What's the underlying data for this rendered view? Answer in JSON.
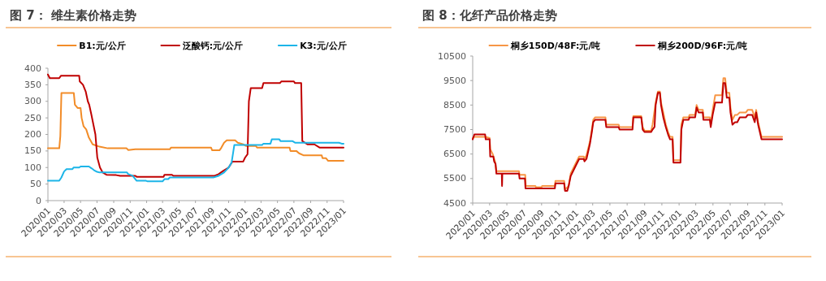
{
  "chart_data": [
    {
      "type": "line",
      "title": "图 7： 维生素价格走势",
      "legend": "top",
      "line_style": "solid",
      "xlim": [
        "2020-01",
        "2023-01"
      ],
      "xticks": [
        {
          "value": "2020-01",
          "label": "2020/01"
        },
        {
          "value": "2020-03",
          "label": "2020/03"
        },
        {
          "value": "2020-05",
          "label": "2020/05"
        },
        {
          "value": "2020-07",
          "label": "2020/07"
        },
        {
          "value": "2020-09",
          "label": "2020/09"
        },
        {
          "value": "2020-11",
          "label": "2020/11"
        },
        {
          "value": "2021-01",
          "label": "2021/01"
        },
        {
          "value": "2021-03",
          "label": "2021/03"
        },
        {
          "value": "2021-05",
          "label": "2021/05"
        },
        {
          "value": "2021-07",
          "label": "2021/07"
        },
        {
          "value": "2021-09",
          "label": "2021/09"
        },
        {
          "value": "2021-11",
          "label": "2021/11"
        },
        {
          "value": "2022-01",
          "label": "2022/01"
        },
        {
          "value": "2022-03",
          "label": "2022/03"
        },
        {
          "value": "2022-05",
          "label": "2022/05"
        },
        {
          "value": "2022-07",
          "label": "2022/07"
        },
        {
          "value": "2022-09",
          "label": "2022/09"
        },
        {
          "value": "2022-11",
          "label": "2022/11"
        },
        {
          "value": "2023-01",
          "label": "2023/01"
        }
      ],
      "ylim": [
        0,
        400
      ],
      "yticks": [
        0,
        50,
        100,
        150,
        200,
        250,
        300,
        350,
        400
      ],
      "series": [
        {
          "name": "B1:元/公斤",
          "color": "#f28c28",
          "x": [
            "2020-01-01",
            "2020-02-12",
            "2020-02-16",
            "2020-02-20",
            "2020-04-06",
            "2020-04-10",
            "2020-04-20",
            "2020-05-01",
            "2020-05-05",
            "2020-05-12",
            "2020-05-22",
            "2020-06-01",
            "2020-06-15",
            "2020-07-10",
            "2020-08-10",
            "2020-10-18",
            "2020-10-25",
            "2020-11-20",
            "2021-03-28",
            "2021-04-01",
            "2021-08-28",
            "2021-09-01",
            "2021-09-28",
            "2021-10-05",
            "2021-10-15",
            "2021-10-25",
            "2021-11-25",
            "2021-12-05",
            "2021-12-25",
            "2022-01-05",
            "2022-02-10",
            "2022-02-15",
            "2022-06-15",
            "2022-06-18",
            "2022-07-10",
            "2022-07-20",
            "2022-08-05",
            "2022-10-12",
            "2022-10-15",
            "2022-10-28",
            "2022-11-05",
            "2023-01-01"
          ],
          "values": [
            158,
            158,
            195,
            325,
            325,
            290,
            280,
            280,
            250,
            225,
            215,
            190,
            170,
            163,
            158,
            158,
            153,
            155,
            155,
            160,
            160,
            152,
            152,
            160,
            175,
            182,
            182,
            175,
            170,
            165,
            165,
            160,
            160,
            150,
            150,
            143,
            137,
            137,
            128,
            128,
            120,
            120
          ]
        },
        {
          "name": "泛酸钙:元/公斤",
          "color": "#c00000",
          "x": [
            "2020-01-01",
            "2020-01-08",
            "2020-02-12",
            "2020-02-18",
            "2020-04-26",
            "2020-04-28",
            "2020-05-10",
            "2020-05-20",
            "2020-05-28",
            "2020-06-02",
            "2020-06-10",
            "2020-06-25",
            "2020-07-02",
            "2020-07-12",
            "2020-07-22",
            "2020-08-05",
            "2020-09-10",
            "2020-09-25",
            "2020-11-20",
            "2020-11-25",
            "2021-03-05",
            "2021-03-08",
            "2021-04-05",
            "2021-04-10",
            "2021-09-10",
            "2021-09-25",
            "2021-10-12",
            "2021-11-01",
            "2021-11-15",
            "2021-12-25",
            "2022-01-01",
            "2022-01-10",
            "2022-01-15",
            "2022-01-22",
            "2022-03-05",
            "2022-03-10",
            "2022-05-10",
            "2022-05-15",
            "2022-07-01",
            "2022-07-05",
            "2022-07-28",
            "2022-08-01",
            "2022-08-20",
            "2022-09-15",
            "2022-10-05",
            "2023-01-01"
          ],
          "values": [
            381,
            370,
            370,
            377,
            377,
            360,
            350,
            330,
            300,
            290,
            260,
            200,
            130,
            100,
            85,
            78,
            77,
            75,
            75,
            72,
            72,
            78,
            78,
            75,
            75,
            80,
            90,
            100,
            118,
            118,
            130,
            140,
            300,
            340,
            340,
            355,
            355,
            360,
            360,
            355,
            355,
            180,
            170,
            170,
            160,
            160
          ]
        },
        {
          "name": "K3:元/公斤",
          "color": "#1cb5e8",
          "x": [
            "2020-01-01",
            "2020-02-12",
            "2020-02-20",
            "2020-03-01",
            "2020-03-10",
            "2020-04-01",
            "2020-04-05",
            "2020-04-26",
            "2020-05-01",
            "2020-06-01",
            "2020-06-10",
            "2020-06-20",
            "2020-07-01",
            "2020-07-10",
            "2020-10-20",
            "2020-10-25",
            "2020-11-10",
            "2020-11-25",
            "2020-12-30",
            "2021-01-05",
            "2021-03-01",
            "2021-03-08",
            "2021-03-22",
            "2021-03-28",
            "2021-09-05",
            "2021-09-25",
            "2021-10-15",
            "2021-11-01",
            "2021-11-12",
            "2021-11-22",
            "2022-03-05",
            "2022-03-10",
            "2022-04-05",
            "2022-04-10",
            "2022-05-08",
            "2022-05-12",
            "2022-06-25",
            "2022-07-05",
            "2022-12-15",
            "2022-12-25",
            "2023-01-01"
          ],
          "values": [
            60,
            60,
            70,
            88,
            95,
            95,
            100,
            100,
            103,
            103,
            98,
            92,
            87,
            85,
            85,
            80,
            75,
            60,
            60,
            58,
            58,
            65,
            65,
            70,
            70,
            75,
            85,
            100,
            115,
            168,
            168,
            172,
            172,
            185,
            185,
            180,
            180,
            175,
            175,
            172,
            172
          ]
        }
      ]
    },
    {
      "type": "line",
      "title": "图 8：化纤产品价格走势",
      "legend": "top",
      "line_style": "solid",
      "xlim": [
        "2020-01",
        "2023-01"
      ],
      "xticks": [
        {
          "value": "2020-01",
          "label": "2020/01"
        },
        {
          "value": "2020-03",
          "label": "2020/03"
        },
        {
          "value": "2020-05",
          "label": "2020/05"
        },
        {
          "value": "2020-07",
          "label": "2020/07"
        },
        {
          "value": "2020-09",
          "label": "2020/09"
        },
        {
          "value": "2020-11",
          "label": "2020/11"
        },
        {
          "value": "2021-01",
          "label": "2021/01"
        },
        {
          "value": "2021-03",
          "label": "2021/03"
        },
        {
          "value": "2021-05",
          "label": "2021/05"
        },
        {
          "value": "2021-07",
          "label": "2021/07"
        },
        {
          "value": "2021-09",
          "label": "2021/09"
        },
        {
          "value": "2021-11",
          "label": "2021/11"
        },
        {
          "value": "2022-01",
          "label": "2022/01"
        },
        {
          "value": "2022-03",
          "label": "2022/03"
        },
        {
          "value": "2022-05",
          "label": "2022/05"
        },
        {
          "value": "2022-07",
          "label": "2022/07"
        },
        {
          "value": "2022-09",
          "label": "2022/09"
        },
        {
          "value": "2022-11",
          "label": "2022/11"
        },
        {
          "value": "2023-01",
          "label": "2023/01"
        }
      ],
      "ylim": [
        4500,
        10500
      ],
      "yticks": [
        4500,
        5500,
        6500,
        7500,
        8500,
        9500,
        10500
      ],
      "series": [
        {
          "name": "桐乡150D/48F:元/吨",
          "color": "#f79646",
          "x": [
            "2020-01-01",
            "2020-01-07",
            "2020-02-16",
            "2020-03-01",
            "2020-03-03",
            "2020-03-12",
            "2020-03-20",
            "2020-03-25",
            "2020-06-13",
            "2020-06-15",
            "2020-07-05",
            "2020-07-07",
            "2020-08-10",
            "2020-08-12",
            "2020-09-01",
            "2020-09-03",
            "2020-10-18",
            "2020-10-20",
            "2020-11-20",
            "2020-11-23",
            "2020-12-06",
            "2020-12-13",
            "2020-12-30",
            "2021-01-12",
            "2021-01-28",
            "2021-01-31",
            "2021-02-07",
            "2021-02-19",
            "2021-02-26",
            "2021-03-03",
            "2021-03-10",
            "2021-04-15",
            "2021-04-18",
            "2021-06-01",
            "2021-06-04",
            "2021-07-20",
            "2021-07-23",
            "2021-08-20",
            "2021-08-25",
            "2021-09-01",
            "2021-09-24",
            "2021-09-29",
            "2021-10-10",
            "2021-10-18",
            "2021-10-25",
            "2021-10-29",
            "2021-11-06",
            "2021-11-15",
            "2021-11-23",
            "2021-11-30",
            "2021-12-09",
            "2021-12-12",
            "2022-01-06",
            "2022-01-09",
            "2022-01-16",
            "2022-02-04",
            "2022-02-07",
            "2022-02-27",
            "2022-03-04",
            "2022-03-11",
            "2022-03-26",
            "2022-03-28",
            "2022-04-20",
            "2022-04-23",
            "2022-04-30",
            "2022-05-09",
            "2022-06-02",
            "2022-06-07",
            "2022-06-13",
            "2022-06-19",
            "2022-06-28",
            "2022-07-02",
            "2022-07-09",
            "2022-07-18",
            "2022-07-26",
            "2022-08-04",
            "2022-08-26",
            "2022-09-01",
            "2022-09-17",
            "2022-09-26",
            "2022-10-01",
            "2022-10-08",
            "2022-10-20",
            "2023-01-01"
          ],
          "values": [
            7150,
            7200,
            7200,
            7150,
            6700,
            6500,
            6200,
            5800,
            5800,
            5650,
            5650,
            5200,
            5200,
            5150,
            5150,
            5200,
            5200,
            5400,
            5400,
            5050,
            5200,
            5700,
            6100,
            6400,
            6400,
            6300,
            6450,
            7000,
            7500,
            7900,
            8000,
            8000,
            7700,
            7700,
            7600,
            7600,
            8050,
            8050,
            7600,
            7450,
            7450,
            7700,
            8600,
            9050,
            9050,
            8600,
            8200,
            7700,
            7400,
            7200,
            7200,
            6250,
            6250,
            7700,
            8000,
            8000,
            8100,
            8100,
            8500,
            8300,
            8300,
            8000,
            8000,
            7700,
            8300,
            8900,
            8900,
            9600,
            9600,
            9000,
            9000,
            8400,
            7900,
            8100,
            8100,
            8200,
            8200,
            8300,
            8300,
            8000,
            8300,
            7800,
            7200,
            7200
          ]
        },
        {
          "name": "桐乡200D/96F:元/吨",
          "color": "#c00000",
          "x": [
            "2020-01-01",
            "2020-01-07",
            "2020-02-14",
            "2020-02-16",
            "2020-03-01",
            "2020-03-03",
            "2020-03-14",
            "2020-03-17",
            "2020-03-22",
            "2020-03-25",
            "2020-04-13",
            "2020-04-14",
            "2020-04-15",
            "2020-06-13",
            "2020-06-15",
            "2020-07-04",
            "2020-07-06",
            "2020-10-18",
            "2020-10-20",
            "2020-11-20",
            "2020-11-23",
            "2020-12-01",
            "2020-12-06",
            "2020-12-13",
            "2020-12-30",
            "2021-01-12",
            "2021-01-28",
            "2021-01-31",
            "2021-02-07",
            "2021-02-19",
            "2021-02-26",
            "2021-03-03",
            "2021-03-10",
            "2021-04-15",
            "2021-04-18",
            "2021-06-01",
            "2021-06-04",
            "2021-07-20",
            "2021-07-23",
            "2021-08-20",
            "2021-08-25",
            "2021-09-01",
            "2021-09-24",
            "2021-09-29",
            "2021-10-06",
            "2021-10-10",
            "2021-10-18",
            "2021-10-25",
            "2021-10-29",
            "2021-11-06",
            "2021-11-15",
            "2021-11-23",
            "2021-11-30",
            "2021-12-09",
            "2021-12-12",
            "2022-01-06",
            "2022-01-09",
            "2022-01-16",
            "2022-02-04",
            "2022-02-07",
            "2022-02-27",
            "2022-03-04",
            "2022-03-11",
            "2022-03-26",
            "2022-03-28",
            "2022-04-20",
            "2022-04-23",
            "2022-04-30",
            "2022-05-09",
            "2022-06-02",
            "2022-06-07",
            "2022-06-13",
            "2022-06-19",
            "2022-06-28",
            "2022-07-02",
            "2022-07-09",
            "2022-07-18",
            "2022-07-26",
            "2022-08-04",
            "2022-08-26",
            "2022-09-01",
            "2022-09-17",
            "2022-09-26",
            "2022-10-01",
            "2022-10-08",
            "2022-10-20",
            "2023-01-01"
          ],
          "values": [
            7100,
            7300,
            7300,
            7100,
            7100,
            6400,
            6400,
            6200,
            6100,
            5700,
            5700,
            5200,
            5700,
            5700,
            5500,
            5500,
            5100,
            5100,
            5300,
            5300,
            5000,
            5000,
            5200,
            5600,
            6000,
            6300,
            6300,
            6200,
            6300,
            6900,
            7400,
            7800,
            7900,
            7900,
            7600,
            7600,
            7500,
            7500,
            8000,
            8000,
            7500,
            7400,
            7400,
            7500,
            7600,
            8500,
            9000,
            9000,
            8500,
            8000,
            7600,
            7300,
            7100,
            7100,
            6150,
            6150,
            7500,
            7900,
            7900,
            8000,
            8000,
            8400,
            8200,
            8200,
            7900,
            7900,
            7600,
            8100,
            8600,
            8600,
            9400,
            9400,
            8800,
            8800,
            8200,
            7700,
            7800,
            7800,
            8000,
            8000,
            8100,
            8100,
            7800,
            8200,
            7700,
            7100,
            7100
          ]
        }
      ]
    }
  ]
}
